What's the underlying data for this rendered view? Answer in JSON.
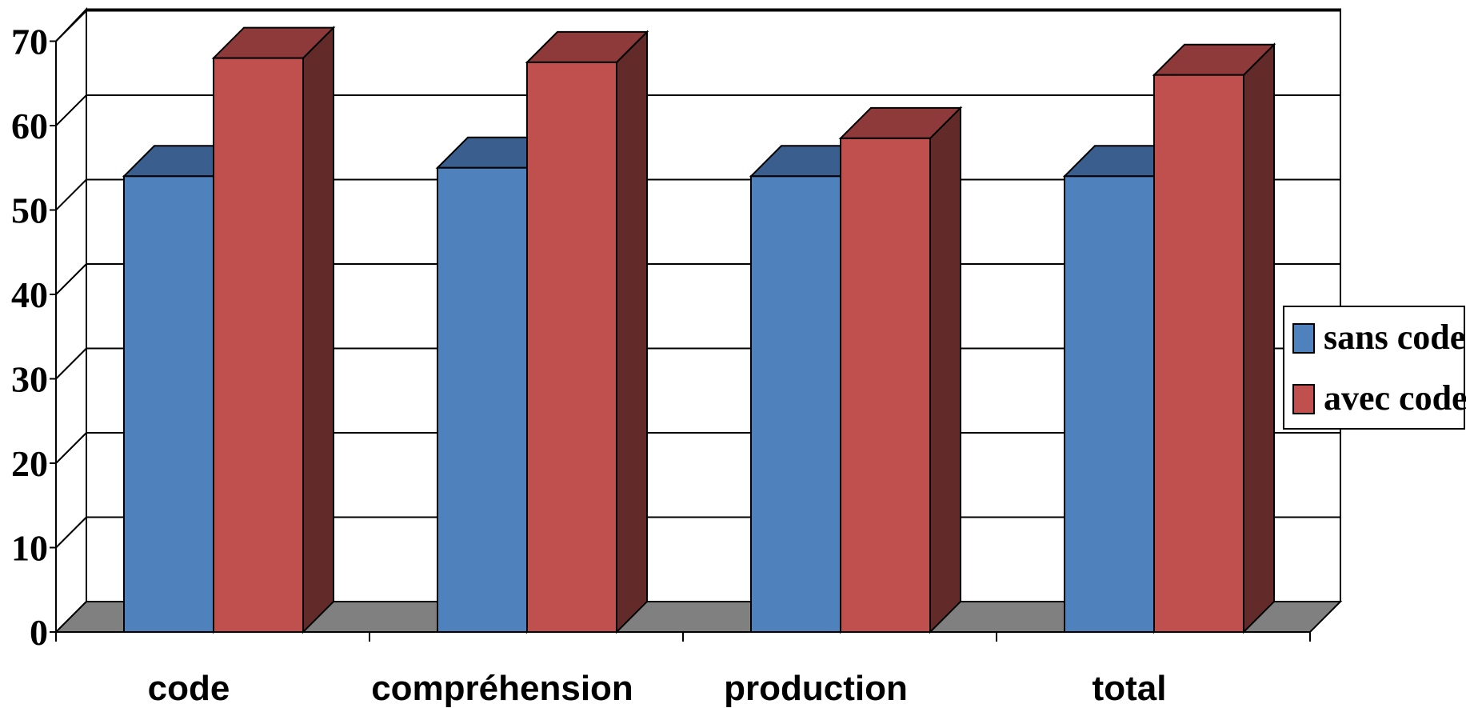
{
  "chart_data": {
    "type": "bar",
    "title": "",
    "xlabel": "",
    "ylabel": "",
    "categories": [
      "code",
      "compréhension",
      "production",
      "total"
    ],
    "series": [
      {
        "name": "sans code",
        "values": [
          54,
          55,
          54,
          54
        ],
        "color": "#4F81BD",
        "top_color": "#3A5F8F",
        "side_color": "#2B4A70"
      },
      {
        "name": "avec code",
        "values": [
          68,
          67.5,
          58.5,
          66
        ],
        "color": "#C0504D",
        "top_color": "#8E3A3A",
        "side_color": "#632A2A"
      }
    ],
    "ylim": [
      0,
      70
    ],
    "yticks": [
      "0",
      "10",
      "20",
      "30",
      "40",
      "50",
      "60",
      "70"
    ],
    "grid": true,
    "legend_position": "right",
    "floor_color": "#808080",
    "three_d": true
  }
}
